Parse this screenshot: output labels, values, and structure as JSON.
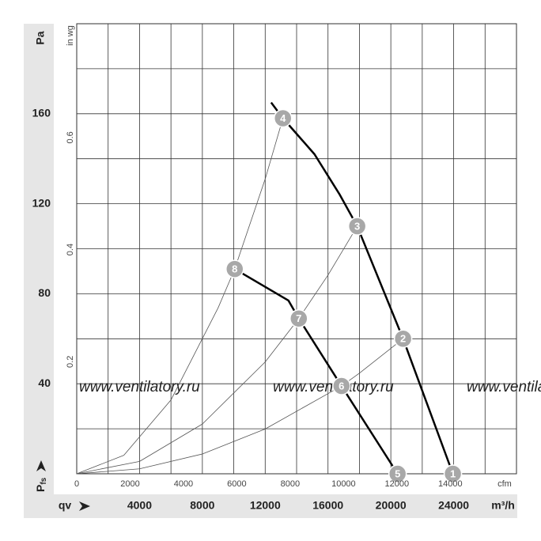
{
  "chart_data": {
    "type": "line",
    "xlabel": "m³/h",
    "xname": "qv",
    "ylabel": "Pa",
    "ysymbol": "P",
    "ysymbol_sub": "fs",
    "x2label": "cfm",
    "y2label": "in wg",
    "watermark": "www.ventilatory.ru",
    "xlim": [
      0,
      28000
    ],
    "ylim": [
      0,
      200
    ],
    "xticks": [
      4000,
      8000,
      12000,
      16000,
      20000,
      24000
    ],
    "yticks": [
      40,
      80,
      120,
      160
    ],
    "xgrid": [
      0,
      2000,
      4000,
      6000,
      8000,
      10000,
      12000,
      14000,
      16000,
      18000,
      20000,
      22000,
      24000,
      26000,
      28000
    ],
    "ygrid": [
      0,
      20,
      40,
      60,
      80,
      100,
      120,
      140,
      160,
      180,
      200
    ],
    "x2lim": [
      0,
      16480
    ],
    "x2ticks": [
      0,
      2000,
      4000,
      6000,
      8000,
      10000,
      12000,
      14000
    ],
    "y2lim": [
      0,
      0.803
    ],
    "y2ticks": [
      0.2,
      0.4,
      0.6
    ],
    "series": [
      {
        "color": "#000000",
        "width": 2.5,
        "x": [
          12380,
          13130,
          15140,
          16750,
          17860,
          20780,
          23950
        ],
        "values": [
          165,
          158,
          142,
          124,
          110,
          60,
          0
        ]
      },
      {
        "color": "#000000",
        "width": 2.5,
        "x": [
          10060,
          13480,
          14140,
          16860,
          20430
        ],
        "values": [
          91,
          77,
          69,
          39,
          0
        ]
      },
      {
        "color": "#555555",
        "width": 0.8,
        "x": [
          0,
          3000,
          6000,
          9000,
          10060,
          12000,
          13130
        ],
        "values": [
          0,
          8.2,
          32.8,
          73.7,
          91,
          131,
          158
        ]
      },
      {
        "color": "#555555",
        "width": 0.8,
        "x": [
          0,
          4000,
          8000,
          12000,
          14140,
          16000,
          17860
        ],
        "values": [
          0,
          5.5,
          22.1,
          49.7,
          69,
          88.3,
          110
        ]
      },
      {
        "color": "#555555",
        "width": 0.8,
        "x": [
          0,
          4000,
          8000,
          12000,
          16860,
          18000,
          20780
        ],
        "values": [
          0,
          2.2,
          8.8,
          19.9,
          39,
          44.7,
          60
        ]
      }
    ],
    "points": [
      {
        "label": "1",
        "x": 23950,
        "y": 0
      },
      {
        "label": "2",
        "x": 20780,
        "y": 60
      },
      {
        "label": "3",
        "x": 17860,
        "y": 110
      },
      {
        "label": "4",
        "x": 13130,
        "y": 158
      },
      {
        "label": "5",
        "x": 20430,
        "y": 0
      },
      {
        "label": "6",
        "x": 16860,
        "y": 39
      },
      {
        "label": "7",
        "x": 14140,
        "y": 69
      },
      {
        "label": "8",
        "x": 10060,
        "y": 91
      }
    ],
    "point_color": "#a8a8a8"
  }
}
